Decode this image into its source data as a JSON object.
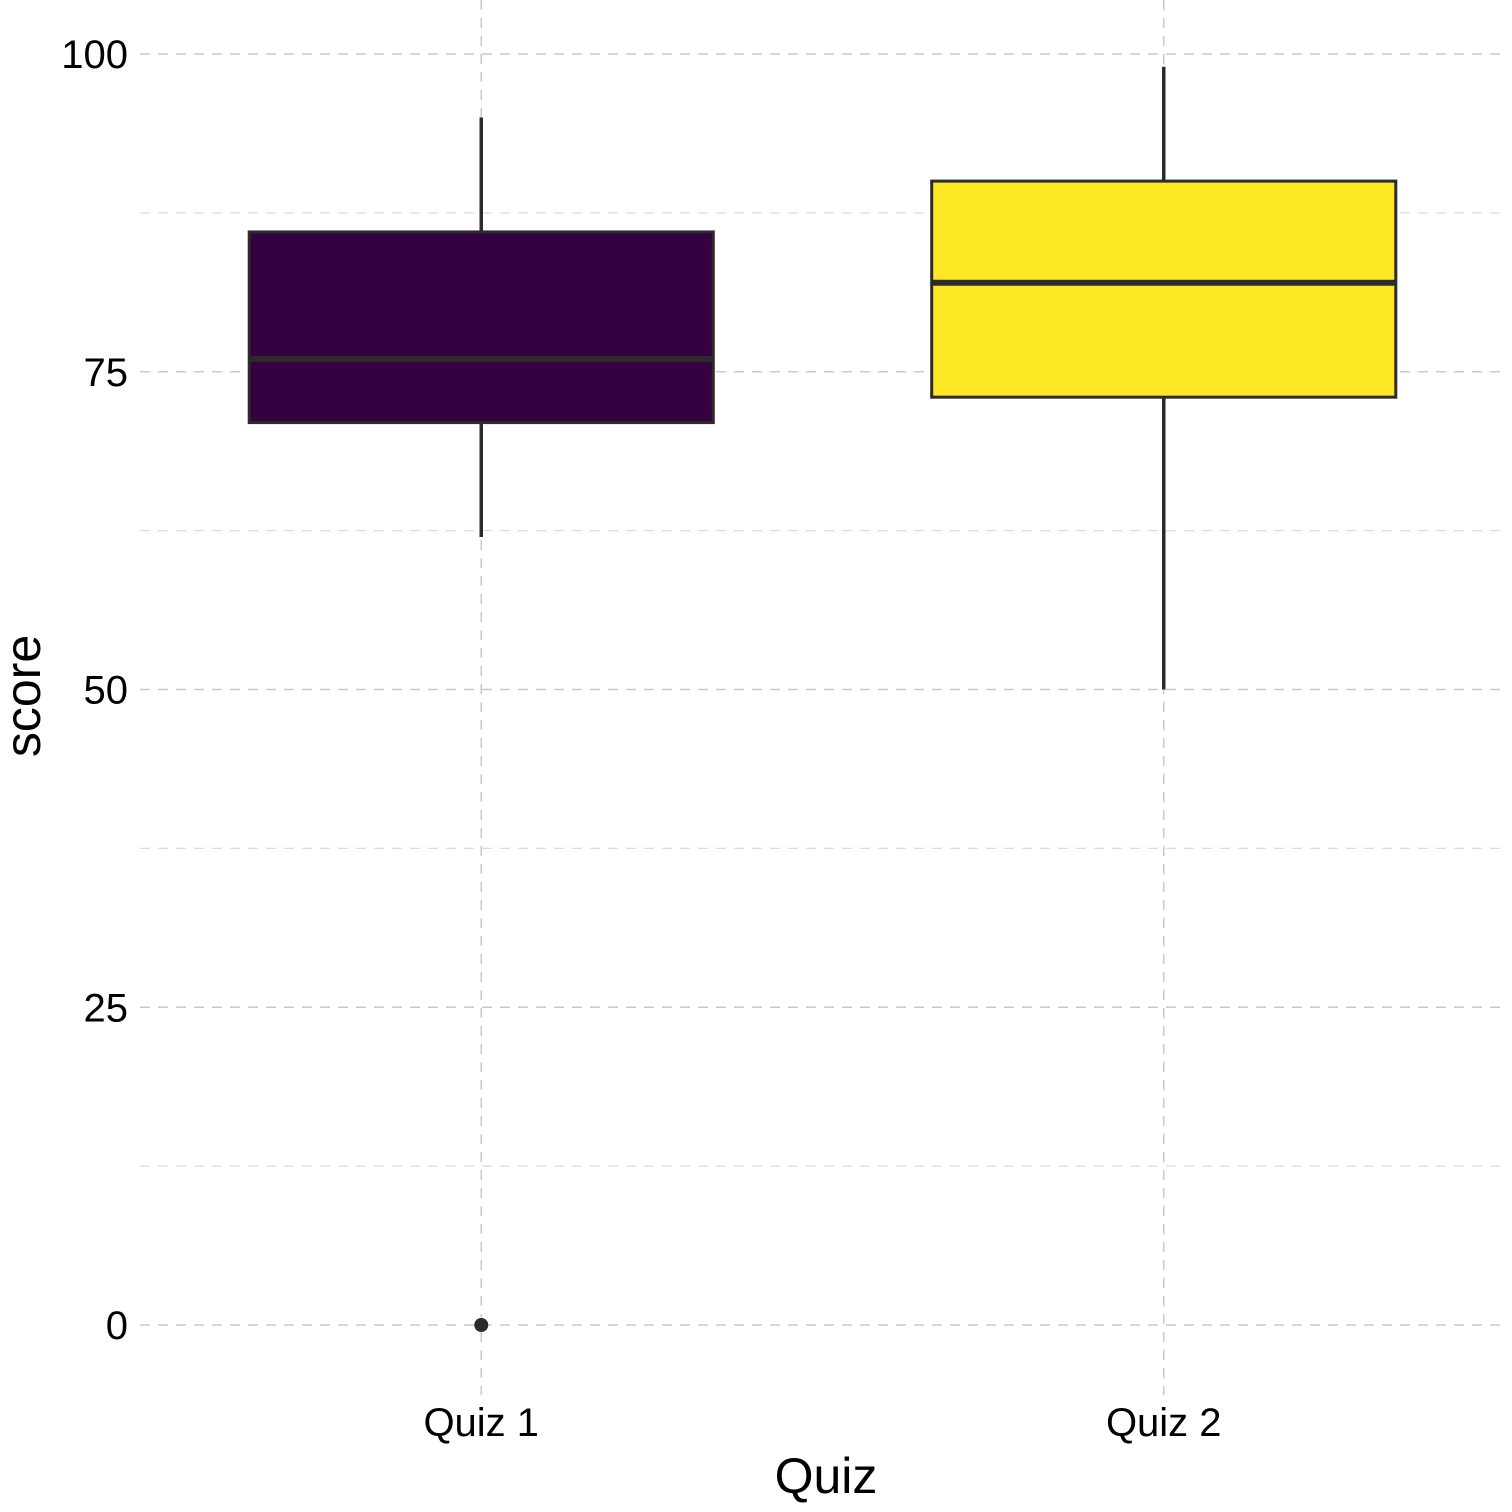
{
  "chart_data": {
    "type": "box",
    "xlabel": "Quiz",
    "ylabel": "score",
    "categories": [
      "Quiz 1",
      "Quiz 2"
    ],
    "ylim": [
      -4.5,
      104
    ],
    "y_ticks": [
      0,
      25,
      50,
      75,
      100
    ],
    "y_tick_labels": [
      "0",
      "25",
      "50",
      "75",
      "100"
    ],
    "y_minor_ticks": [
      12.5,
      37.5,
      62.5,
      87.5
    ],
    "grid": true,
    "boxes": [
      {
        "category": "Quiz 1",
        "color": "#35003F",
        "whisker_low": 62,
        "q1": 71,
        "median": 76,
        "q3": 86,
        "whisker_high": 95,
        "outliers": [
          0
        ]
      },
      {
        "category": "Quiz 2",
        "color": "#FDE725",
        "whisker_low": 50,
        "q1": 73,
        "median": 82,
        "q3": 90,
        "whisker_high": 99,
        "outliers": []
      }
    ]
  }
}
